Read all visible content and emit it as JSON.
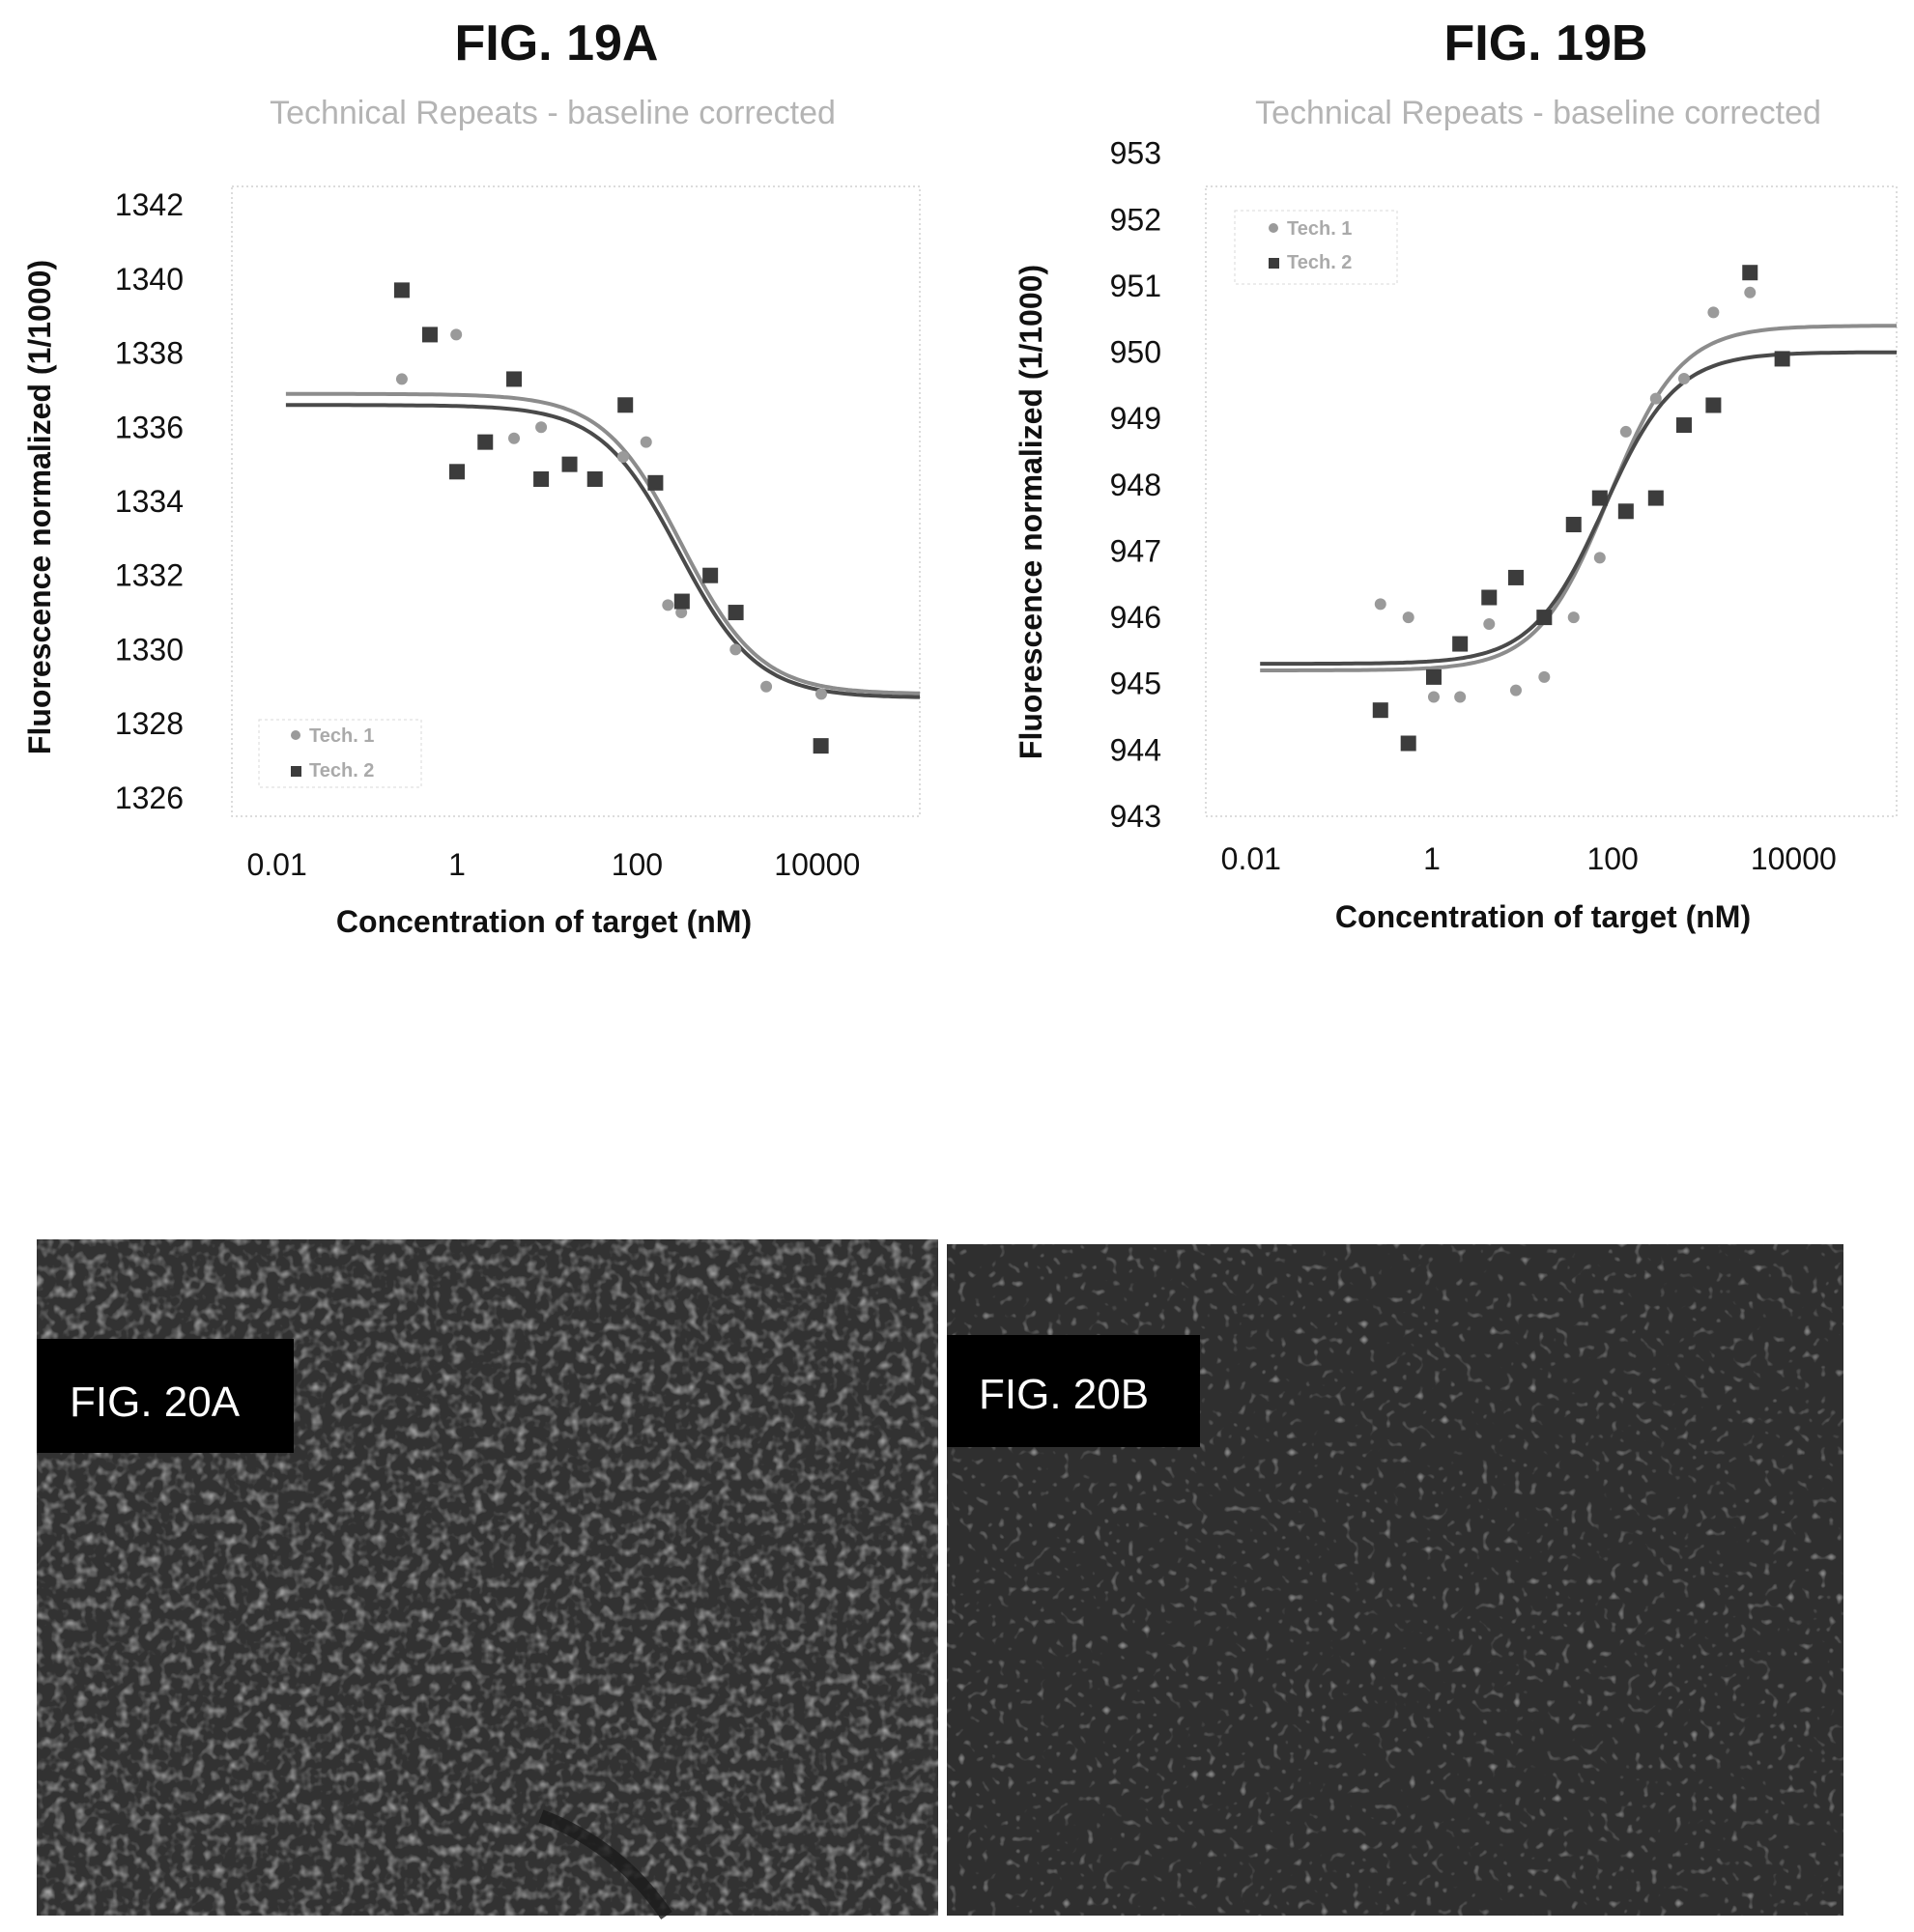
{
  "figures": {
    "fig19a": {
      "label": "FIG. 19A",
      "subtitle": "Technical Repeats - baseline corrected"
    },
    "fig19b": {
      "label": "FIG. 19B",
      "subtitle": "Technical Repeats - baseline corrected"
    },
    "fig20a": {
      "label": "FIG. 20A"
    },
    "fig20b": {
      "label": "FIG. 20B"
    }
  },
  "colors": {
    "series1": "#9a9a9a",
    "series2": "#3c3c3c",
    "fit1": "#8c8c8c",
    "fit2": "#4a4a4a",
    "micro_bg": "#333333"
  },
  "chart_data": [
    {
      "type": "scatter",
      "id": "fig19a",
      "title": "Technical Repeats - baseline corrected",
      "xlabel": "Concentration of target (nM)",
      "ylabel": "Fluorescence normalized (1/1000)",
      "xscale": "log",
      "xlim": [
        0.00316,
        138000
      ],
      "ylim": [
        1325.5,
        1342.5
      ],
      "xticks": [
        0.01,
        1,
        100,
        10000
      ],
      "xtick_labels": [
        "0.01",
        "1",
        "100",
        "10000"
      ],
      "yticks": [
        1326,
        1328,
        1330,
        1332,
        1334,
        1336,
        1338,
        1340,
        1342
      ],
      "legend_position": "bottom-left",
      "grid": false,
      "series": [
        {
          "name": "Tech. 1",
          "marker": "circle",
          "x": [
            0.244,
            0.5,
            0.98,
            4.3,
            8.6,
            70,
            126,
            220,
            310,
            1240,
            2720,
            11100
          ],
          "y": [
            1337.3,
            1338.5,
            1338.5,
            1335.7,
            1336.0,
            1335.2,
            1335.6,
            1331.2,
            1331.0,
            1330.0,
            1329.0,
            1328.8
          ]
        },
        {
          "name": "Tech. 2",
          "marker": "square",
          "x": [
            0.244,
            0.5,
            1.0,
            2.06,
            4.3,
            8.6,
            17.8,
            34,
            74,
            160,
            315,
            650,
            1250,
            11000
          ],
          "y": [
            1339.7,
            1338.5,
            1334.8,
            1335.6,
            1337.3,
            1334.6,
            1335.0,
            1334.6,
            1336.6,
            1334.5,
            1331.3,
            1332.0,
            1331.0,
            1327.4
          ]
        }
      ],
      "fits": [
        {
          "name": "Tech. 1",
          "top": 1336.9,
          "bottom": 1328.8,
          "ec50": 310,
          "hill": 1.0
        },
        {
          "name": "Tech. 2",
          "top": 1336.6,
          "bottom": 1328.7,
          "ec50": 290,
          "hill": 1.0
        }
      ]
    },
    {
      "type": "scatter",
      "id": "fig19b",
      "title": "Technical Repeats - baseline corrected",
      "xlabel": "Concentration of target (nM)",
      "ylabel": "Fluorescence normalized (1/1000)",
      "xscale": "log",
      "xlim": [
        0.00316,
        138000
      ],
      "ylim": [
        943,
        952.5
      ],
      "xticks": [
        0.01,
        1,
        100,
        10000
      ],
      "xtick_labels": [
        "0.01",
        "1",
        "100",
        "10000"
      ],
      "yticks": [
        943,
        944,
        945,
        946,
        947,
        948,
        949,
        950,
        951,
        952,
        953
      ],
      "legend_position": "top-left",
      "grid": false,
      "series": [
        {
          "name": "Tech. 1",
          "marker": "circle",
          "x": [
            0.27,
            0.55,
            1.05,
            2.05,
            4.3,
            8.5,
            17.5,
            37,
            72,
            140,
            300,
            615,
            1300,
            3300
          ],
          "y": [
            946.2,
            946.0,
            944.8,
            944.8,
            945.9,
            944.9,
            945.1,
            946.0,
            946.9,
            948.8,
            949.3,
            949.6,
            950.6,
            950.9
          ]
        },
        {
          "name": "Tech. 2",
          "marker": "square",
          "x": [
            0.27,
            0.55,
            1.05,
            2.05,
            4.3,
            8.5,
            17.5,
            37,
            72,
            140,
            300,
            615,
            1300,
            3300,
            7500
          ],
          "y": [
            944.6,
            944.1,
            945.1,
            945.6,
            946.3,
            946.6,
            946.0,
            947.4,
            947.8,
            947.6,
            947.8,
            948.9,
            949.2,
            951.2,
            949.9
          ]
        }
      ],
      "fits": [
        {
          "name": "Tech. 1",
          "top": 950.4,
          "bottom": 945.2,
          "ec50": 90,
          "hill": 1.1
        },
        {
          "name": "Tech. 2",
          "top": 950.0,
          "bottom": 945.3,
          "ec50": 80,
          "hill": 1.1
        }
      ]
    }
  ]
}
